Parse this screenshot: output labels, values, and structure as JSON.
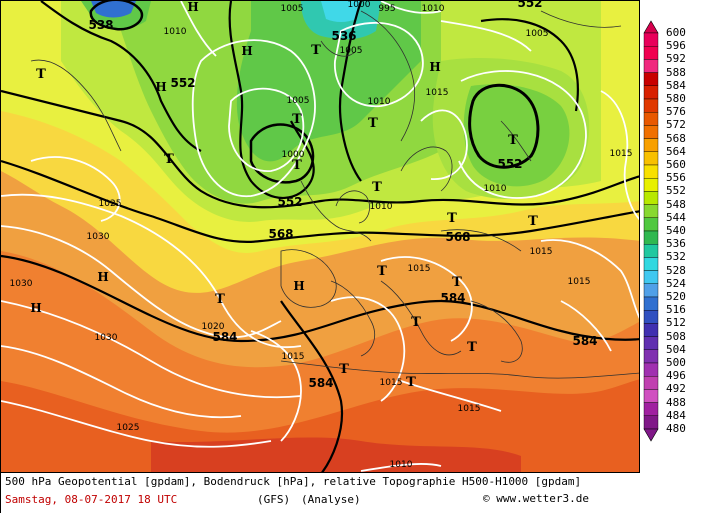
{
  "legend": {
    "values": [
      "600",
      "596",
      "592",
      "588",
      "584",
      "580",
      "576",
      "572",
      "568",
      "564",
      "560",
      "556",
      "552",
      "548",
      "544",
      "540",
      "536",
      "532",
      "528",
      "524",
      "520",
      "516",
      "512",
      "508",
      "504",
      "500",
      "496",
      "492",
      "488",
      "484",
      "480"
    ],
    "colors": [
      "#d6004d",
      "#e8005a",
      "#f00050",
      "#f0287e",
      "#c80000",
      "#d82000",
      "#e03800",
      "#e85800",
      "#f07000",
      "#f8a000",
      "#f8c000",
      "#f8e000",
      "#e8f000",
      "#b8e800",
      "#88d830",
      "#50c840",
      "#30b850",
      "#20c8a0",
      "#30d8e0",
      "#40c8f0",
      "#50a0e8",
      "#3070d0",
      "#3050c0",
      "#4030b0",
      "#6030b0",
      "#8030b0",
      "#a030b0",
      "#c040b0",
      "#d050c0",
      "#a020a0",
      "#801888"
    ]
  },
  "footer": {
    "line1": "500 hPa Geopotential [gpdam], Bodendruck [hPa], relative Topographie H500-H1000 [gpdam]",
    "date": "Samstag, 08-07-2017  18 UTC",
    "model": "(GFS)",
    "analysis": "(Analyse)",
    "credit": "© www.wetter3.de"
  },
  "map": {
    "geopotential_labels": [
      "538",
      "536",
      "552",
      "552",
      "552",
      "568",
      "568",
      "584",
      "584",
      "584",
      "584",
      "552"
    ],
    "pressure_labels": [
      "1010",
      "1005",
      "1000",
      "995",
      "1005",
      "1010",
      "1015",
      "1010",
      "1005",
      "1000",
      "1010",
      "1005",
      "1015",
      "1010",
      "1025",
      "1030",
      "1030",
      "1030",
      "1020",
      "1015",
      "1015",
      "1015",
      "1015",
      "1015",
      "1025",
      "1010",
      "1015"
    ],
    "lows": [
      "T",
      "T",
      "T",
      "T",
      "T",
      "T",
      "T",
      "T",
      "T",
      "T",
      "T",
      "T",
      "T",
      "T",
      "T",
      "T",
      "T"
    ],
    "highs": [
      "H",
      "H",
      "H",
      "H",
      "H",
      "H",
      "H"
    ]
  }
}
